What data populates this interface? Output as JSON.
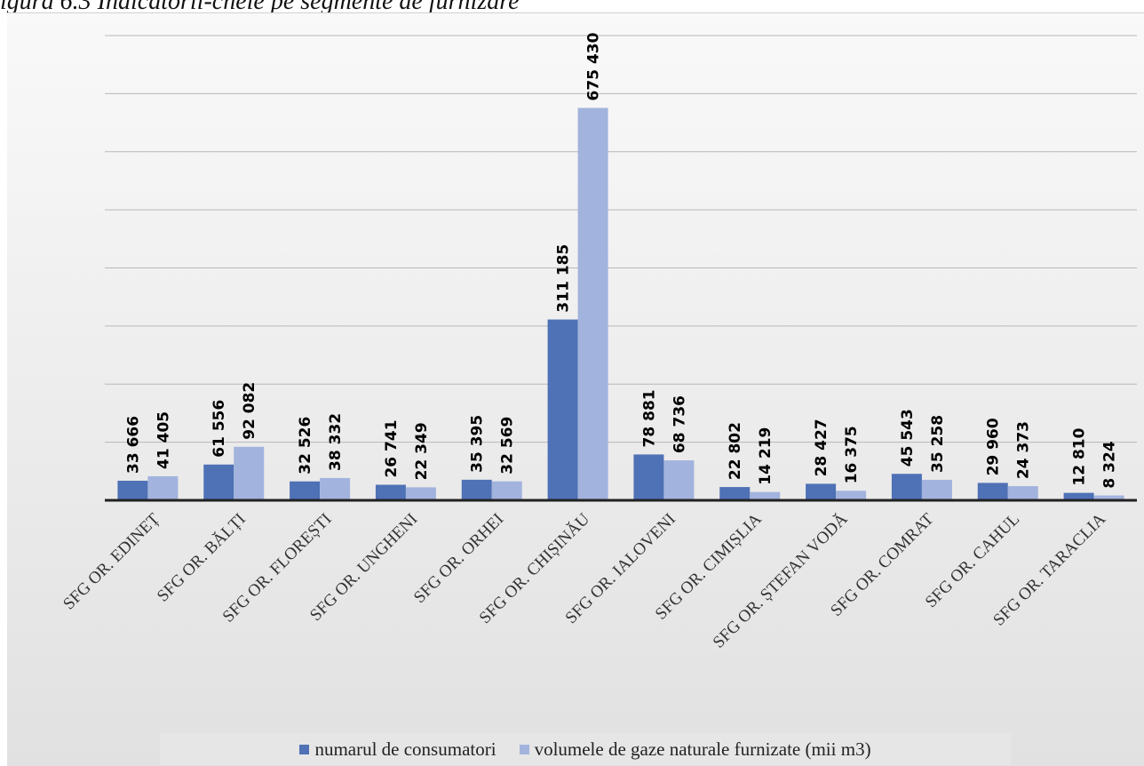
{
  "caption": "igura 6.3 Indicatorii-cheie pe segmente de furnizare",
  "chart_data": {
    "type": "bar",
    "categories": [
      "SFG OR. EDINEȚ",
      "SFG OR. BĂLȚI",
      "SFG OR. FLOREȘTI",
      "SFG OR. UNGHENI",
      "SFG OR. ORHEI",
      "SFG OR. CHIȘINĂU",
      "SFG OR. IALOVENI",
      "SFG OR. CIMIȘLIA",
      "SFG OR. ȘTEFAN VODĂ",
      "SFG OR. COMRAT",
      "SFG OR. CAHUL",
      "SFG OR. TARACLIA"
    ],
    "series": [
      {
        "name": "numarul de consumatori",
        "color": "#4f71b5",
        "values": [
          33666,
          61556,
          32526,
          26741,
          35395,
          311185,
          78881,
          22802,
          28427,
          45543,
          29960,
          12810
        ],
        "labels": [
          "33 666",
          "61 556",
          "32 526",
          "26 741",
          "35 395",
          "311 185",
          "78 881",
          "22 802",
          "28 427",
          "45 543",
          "29 960",
          "12 810"
        ]
      },
      {
        "name": "volumele de gaze naturale furnizate (mii m3)",
        "color": "#a2b3dd",
        "values": [
          41405,
          92082,
          38332,
          22349,
          32569,
          675430,
          68736,
          14219,
          16375,
          35258,
          24373,
          8324
        ],
        "labels": [
          "41 405",
          "92 082",
          "38 332",
          "22 349",
          "32 569",
          "675 430",
          "68 736",
          "14 219",
          "16 375",
          "35 258",
          "24 373",
          "8 324"
        ]
      }
    ],
    "ylim": [
      0,
      800000
    ],
    "grid": true,
    "legend_position": "bottom"
  }
}
